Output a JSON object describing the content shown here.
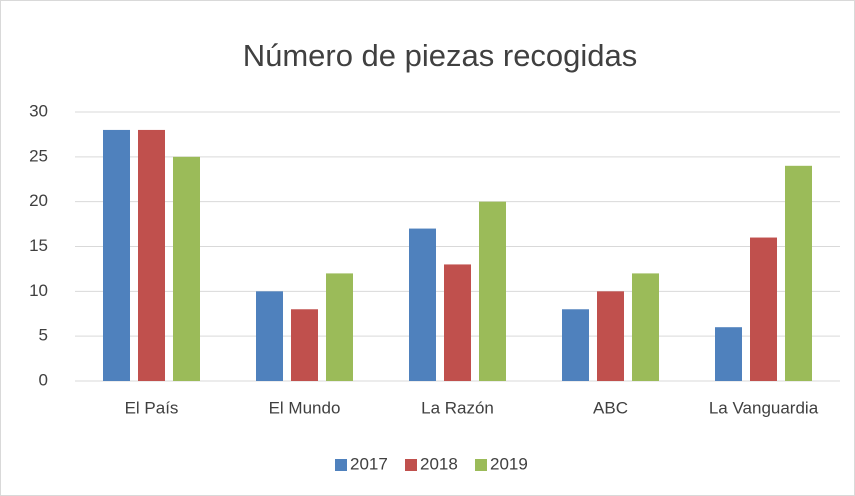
{
  "chart_data": {
    "type": "bar",
    "title": "Número de piezas recogidas",
    "categories": [
      "El País",
      "El Mundo",
      "La Razón",
      "ABC",
      "La Vanguardia"
    ],
    "series": [
      {
        "name": "2017",
        "color": "#4f81bd",
        "values": [
          28,
          10,
          17,
          8,
          6
        ]
      },
      {
        "name": "2018",
        "color": "#c0504d",
        "values": [
          28,
          8,
          13,
          10,
          16
        ]
      },
      {
        "name": "2019",
        "color": "#9bbb59",
        "values": [
          25,
          12,
          20,
          12,
          24
        ]
      }
    ],
    "ylim": [
      0,
      30
    ],
    "yticks": [
      0,
      5,
      10,
      15,
      20,
      25,
      30
    ],
    "grid": true,
    "legend": "bottom"
  }
}
